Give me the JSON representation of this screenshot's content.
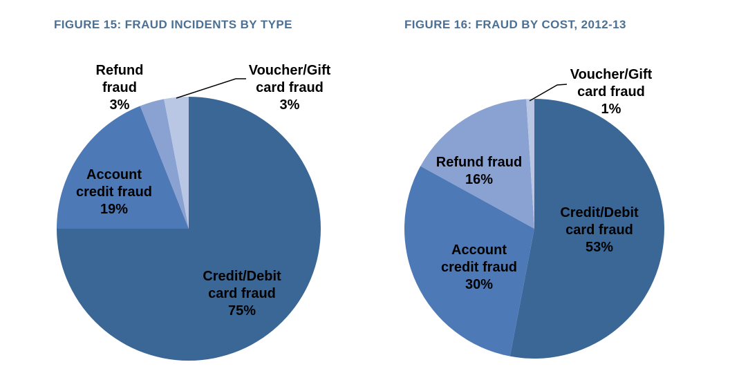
{
  "palette": {
    "background": "#FFFFFF",
    "title_text": "#4C7093",
    "label_text": "#000000",
    "leader_line": "#000000"
  },
  "chart_data": [
    {
      "type": "pie",
      "title": "FIGURE 15: FRAUD INCIDENTS BY TYPE",
      "categories": [
        "Credit/Debit card fraud",
        "Account credit fraud",
        "Refund fraud",
        "Voucher/Gift card fraud"
      ],
      "values": [
        75,
        19,
        3,
        3
      ],
      "value_unit": "%",
      "start_angle": "12 o'clock",
      "direction": "clockwise",
      "legend": "none (labels on slices)",
      "colors": [
        "#3A6795",
        "#4D79B6",
        "#8AA2D2",
        "#B9C7E4"
      ],
      "slice_labels": [
        "Credit/Debit\ncard fraud\n75%",
        "Account\ncredit fraud\n19%",
        "Refund\nfraud\n3%",
        "Voucher/Gift\ncard fraud\n3%"
      ]
    },
    {
      "type": "pie",
      "title": "FIGURE 16: FRAUD BY COST, 2012-13",
      "categories": [
        "Credit/Debit card fraud",
        "Account credit fraud",
        "Refund fraud",
        "Voucher/Gift card fraud"
      ],
      "values": [
        53,
        30,
        16,
        1
      ],
      "value_unit": "%",
      "start_angle": "12 o'clock",
      "direction": "clockwise",
      "legend": "none (labels on slices)",
      "colors": [
        "#3A6795",
        "#4D79B6",
        "#8AA2D2",
        "#B9C7E4"
      ],
      "slice_labels": [
        "Credit/Debit\ncard fraud\n53%",
        "Account\ncredit fraud\n30%",
        "Refund fraud\n16%",
        "Voucher/Gift\ncard fraud\n1%"
      ]
    }
  ]
}
